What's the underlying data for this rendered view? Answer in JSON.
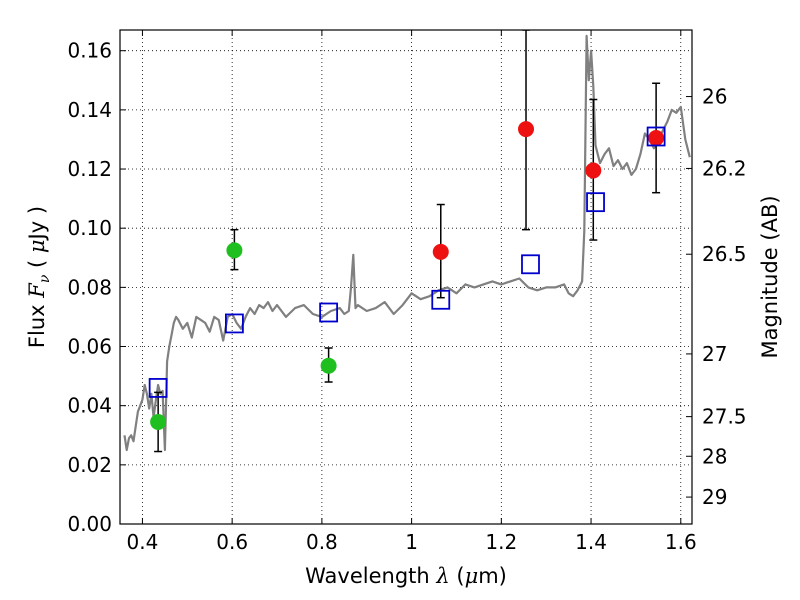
{
  "chart_data": {
    "type": "scatter",
    "xlabel": {
      "prefix": "Wavelength  ",
      "symbol": "λ",
      "unit_open": " (",
      "unit_mu": "μ",
      "unit_rest": "m)"
    },
    "ylabel": {
      "prefix": "Flux  ",
      "symbol": "F",
      "sub": "ν",
      "unit_open": "  ( ",
      "unit_mu": "μ",
      "unit_rest": "Jy )"
    },
    "y2label": "Magnitude (AB)",
    "xlim": [
      0.35,
      1.625
    ],
    "ylim": [
      0.0,
      0.167
    ],
    "grid": true,
    "x_ticks": [
      0.4,
      0.6,
      0.8,
      1.0,
      1.2,
      1.4,
      1.6
    ],
    "x_tick_labels": [
      "0.4",
      "0.6",
      "0.8",
      "1",
      "1.2",
      "1.4",
      "1.6"
    ],
    "y_ticks": [
      0.0,
      0.02,
      0.04,
      0.06,
      0.08,
      0.1,
      0.12,
      0.14,
      0.16
    ],
    "y_tick_labels": [
      "0.00",
      "0.02",
      "0.04",
      "0.06",
      "0.08",
      "0.10",
      "0.12",
      "0.14",
      "0.16"
    ],
    "magnitude_ticks": [
      {
        "label": "26",
        "flux": 0.1445
      },
      {
        "label": "26.2",
        "flux": 0.1202
      },
      {
        "label": "26.5",
        "flux": 0.0912
      },
      {
        "label": "27",
        "flux": 0.0575
      },
      {
        "label": "27.5",
        "flux": 0.0363
      },
      {
        "label": "28",
        "flux": 0.0229
      },
      {
        "label": "29",
        "flux": 0.0091
      }
    ],
    "colors": {
      "green": "#1fbf1f",
      "red": "#ee1111",
      "blue_square": "#0000cc",
      "spectrum": "#808080",
      "errorbar": "#000000"
    },
    "series": [
      {
        "marker": "circle",
        "color": "green",
        "x": [
          0.435,
          0.605,
          0.815
        ],
        "y": [
          0.0345,
          0.0925,
          0.0535
        ],
        "yerr_low": [
          0.0245,
          0.086,
          0.048
        ],
        "yerr_high": [
          0.0445,
          0.0995,
          0.0595
        ]
      },
      {
        "marker": "circle",
        "color": "red",
        "x": [
          1.065,
          1.255,
          1.405,
          1.545
        ],
        "y": [
          0.092,
          0.1335,
          0.1195,
          0.1305
        ],
        "yerr_low": [
          0.0765,
          0.0995,
          0.096,
          0.112
        ],
        "yerr_high": [
          0.108,
          0.167,
          0.1435,
          0.149
        ]
      },
      {
        "marker": "open-square",
        "color": "blue_square",
        "x": [
          0.435,
          0.605,
          0.815,
          1.065,
          1.265,
          1.41,
          1.545
        ],
        "y": [
          0.046,
          0.0678,
          0.0715,
          0.0758,
          0.0878,
          0.1088,
          0.131
        ]
      },
      {
        "marker": "line",
        "color": "spectrum",
        "x": [
          0.36,
          0.365,
          0.37,
          0.375,
          0.38,
          0.385,
          0.39,
          0.395,
          0.4,
          0.405,
          0.41,
          0.415,
          0.42,
          0.425,
          0.43,
          0.435,
          0.44,
          0.445,
          0.45,
          0.455,
          0.46,
          0.465,
          0.47,
          0.475,
          0.48,
          0.49,
          0.5,
          0.51,
          0.52,
          0.53,
          0.54,
          0.55,
          0.56,
          0.57,
          0.58,
          0.59,
          0.6,
          0.61,
          0.62,
          0.63,
          0.64,
          0.65,
          0.66,
          0.67,
          0.68,
          0.69,
          0.7,
          0.72,
          0.74,
          0.76,
          0.78,
          0.8,
          0.82,
          0.84,
          0.85,
          0.86,
          0.865,
          0.87,
          0.875,
          0.88,
          0.9,
          0.92,
          0.94,
          0.96,
          0.98,
          1.0,
          1.02,
          1.04,
          1.06,
          1.08,
          1.1,
          1.12,
          1.14,
          1.16,
          1.18,
          1.2,
          1.22,
          1.24,
          1.26,
          1.28,
          1.3,
          1.32,
          1.34,
          1.35,
          1.36,
          1.37,
          1.38,
          1.385,
          1.39,
          1.395,
          1.4,
          1.405,
          1.41,
          1.42,
          1.43,
          1.44,
          1.45,
          1.46,
          1.47,
          1.48,
          1.49,
          1.5,
          1.51,
          1.52,
          1.53,
          1.54,
          1.55,
          1.56,
          1.57,
          1.58,
          1.59,
          1.6,
          1.61,
          1.62
        ],
        "y": [
          0.03,
          0.025,
          0.029,
          0.03,
          0.028,
          0.033,
          0.038,
          0.04,
          0.042,
          0.047,
          0.044,
          0.039,
          0.044,
          0.036,
          0.042,
          0.047,
          0.044,
          0.045,
          0.025,
          0.055,
          0.06,
          0.064,
          0.068,
          0.07,
          0.069,
          0.066,
          0.068,
          0.063,
          0.07,
          0.069,
          0.068,
          0.065,
          0.07,
          0.069,
          0.062,
          0.07,
          0.071,
          0.068,
          0.066,
          0.07,
          0.073,
          0.071,
          0.074,
          0.073,
          0.075,
          0.072,
          0.074,
          0.07,
          0.073,
          0.074,
          0.071,
          0.07,
          0.072,
          0.073,
          0.071,
          0.072,
          0.08,
          0.091,
          0.073,
          0.074,
          0.072,
          0.073,
          0.075,
          0.071,
          0.074,
          0.078,
          0.076,
          0.077,
          0.079,
          0.08,
          0.078,
          0.081,
          0.08,
          0.081,
          0.082,
          0.081,
          0.082,
          0.083,
          0.08,
          0.079,
          0.08,
          0.08,
          0.081,
          0.078,
          0.077,
          0.079,
          0.082,
          0.099,
          0.165,
          0.15,
          0.16,
          0.148,
          0.128,
          0.122,
          0.125,
          0.127,
          0.121,
          0.123,
          0.12,
          0.122,
          0.118,
          0.12,
          0.125,
          0.132,
          0.13,
          0.127,
          0.13,
          0.133,
          0.136,
          0.14,
          0.139,
          0.141,
          0.13,
          0.124
        ]
      }
    ]
  }
}
